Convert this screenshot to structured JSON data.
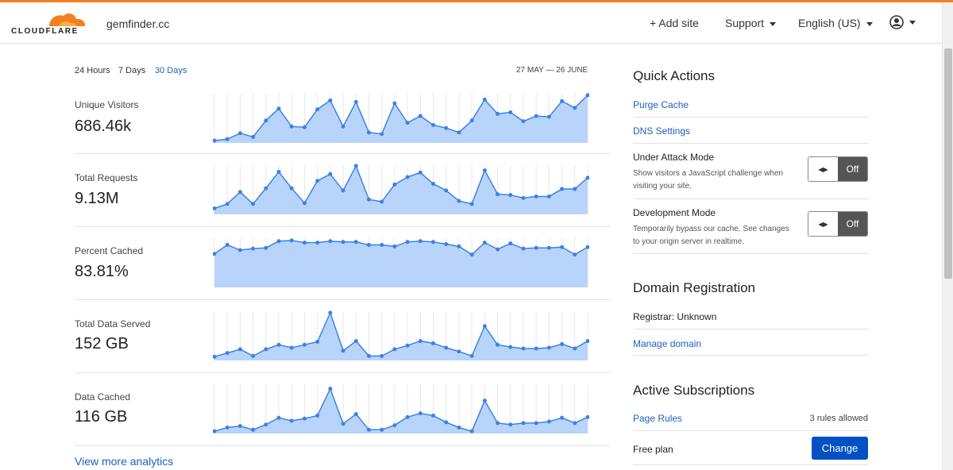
{
  "header": {
    "logo_text": "CLOUDFLARE",
    "site_name": "gemfinder.cc",
    "add_site": "+ Add site",
    "support": "Support",
    "language": "English (US)"
  },
  "analytics": {
    "ranges": [
      "24 Hours",
      "7 Days",
      "30 Days"
    ],
    "active_range": "30 Days",
    "date_range": "27 MAY — 26 JUNE",
    "metrics": [
      {
        "label": "Unique Visitors",
        "value": "686.46k"
      },
      {
        "label": "Total Requests",
        "value": "9.13M"
      },
      {
        "label": "Percent Cached",
        "value": "83.81%"
      },
      {
        "label": "Total Data Served",
        "value": "152 GB"
      },
      {
        "label": "Data Cached",
        "value": "116 GB"
      }
    ],
    "view_more": "View more analytics"
  },
  "chart_data": [
    {
      "type": "area",
      "name": "Unique Visitors",
      "x": [
        1,
        2,
        3,
        4,
        5,
        6,
        7,
        8,
        9,
        10,
        11,
        12,
        13,
        14,
        15,
        16,
        17,
        18,
        19,
        20,
        21,
        22,
        23,
        24,
        25,
        26,
        27,
        28,
        29,
        30
      ],
      "values": [
        3,
        5,
        13,
        8,
        30,
        46,
        22,
        21,
        45,
        57,
        22,
        55,
        14,
        12,
        53,
        27,
        36,
        24,
        20,
        14,
        30,
        58,
        39,
        41,
        29,
        36,
        35,
        56,
        47,
        64
      ]
    },
    {
      "type": "area",
      "name": "Total Requests",
      "x": [
        1,
        2,
        3,
        4,
        5,
        6,
        7,
        8,
        9,
        10,
        11,
        12,
        13,
        14,
        15,
        16,
        17,
        18,
        19,
        20,
        21,
        22,
        23,
        24,
        25,
        26,
        27,
        28,
        29,
        30
      ],
      "values": [
        8,
        14,
        30,
        14,
        35,
        57,
        35,
        15,
        45,
        54,
        32,
        65,
        20,
        17,
        40,
        50,
        56,
        41,
        32,
        18,
        14,
        59,
        27,
        26,
        22,
        24,
        24,
        34,
        34,
        49
      ]
    },
    {
      "type": "area",
      "name": "Percent Cached",
      "x": [
        1,
        2,
        3,
        4,
        5,
        6,
        7,
        8,
        9,
        10,
        11,
        12,
        13,
        14,
        15,
        16,
        17,
        18,
        19,
        20,
        21,
        22,
        23,
        24,
        25,
        26,
        27,
        28,
        29,
        30
      ],
      "values": [
        45,
        57,
        50,
        52,
        53,
        62,
        63,
        60,
        60,
        62,
        61,
        61,
        57,
        57,
        55,
        61,
        62,
        61,
        58,
        55,
        44,
        60,
        51,
        59,
        52,
        53,
        53,
        54,
        44,
        54
      ]
    },
    {
      "type": "area",
      "name": "Total Data Served",
      "x": [
        1,
        2,
        3,
        4,
        5,
        6,
        7,
        8,
        9,
        10,
        11,
        12,
        13,
        14,
        15,
        16,
        17,
        18,
        19,
        20,
        21,
        22,
        23,
        24,
        25,
        26,
        27,
        28,
        29,
        30
      ],
      "values": [
        5,
        10,
        15,
        6,
        15,
        21,
        17,
        21,
        25,
        64,
        13,
        26,
        6,
        6,
        15,
        20,
        26,
        23,
        17,
        12,
        6,
        46,
        21,
        18,
        16,
        16,
        17,
        22,
        16,
        26
      ]
    },
    {
      "type": "area",
      "name": "Data Cached",
      "x": [
        1,
        2,
        3,
        4,
        5,
        6,
        7,
        8,
        9,
        10,
        11,
        12,
        13,
        14,
        15,
        16,
        17,
        18,
        19,
        20,
        21,
        22,
        23,
        24,
        25,
        26,
        27,
        28,
        29,
        30
      ],
      "values": [
        3,
        8,
        10,
        5,
        12,
        21,
        17,
        20,
        24,
        60,
        13,
        26,
        5,
        5,
        11,
        22,
        27,
        24,
        15,
        8,
        3,
        44,
        14,
        12,
        14,
        14,
        16,
        21,
        14,
        22
      ]
    }
  ],
  "quick_actions": {
    "title": "Quick Actions",
    "purge_cache": "Purge Cache",
    "dns_settings": "DNS Settings",
    "under_attack_label": "Under Attack Mode",
    "under_attack_desc": "Show visitors a JavaScript challenge when visiting your site.",
    "under_attack_state": "Off",
    "dev_mode_label": "Development Mode",
    "dev_mode_desc": "Temporarily bypass our cache. See changes to your origin server in realtime.",
    "dev_mode_state": "Off"
  },
  "domain_registration": {
    "title": "Domain Registration",
    "registrar": "Registrar: Unknown",
    "manage": "Manage domain"
  },
  "subscriptions": {
    "title": "Active Subscriptions",
    "page_rules": "Page Rules",
    "rules_allowed": "3 rules allowed",
    "plan": "Free plan",
    "change": "Change"
  },
  "colors": {
    "accent": "#f38020",
    "link": "#1f5fbf",
    "chart_line": "#3b82e6",
    "chart_fill": "#b9d4fb",
    "button": "#0051c3"
  }
}
